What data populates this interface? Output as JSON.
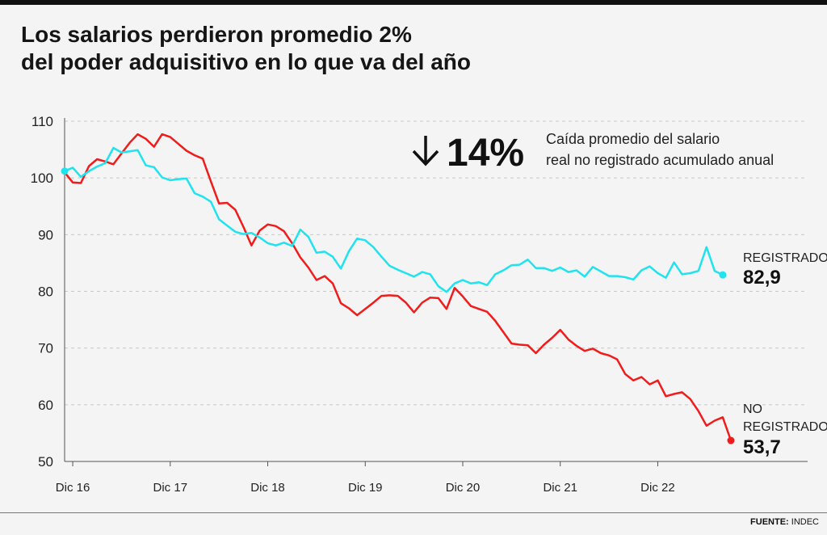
{
  "header": {
    "title_line1": "Los salarios perdieron promedio 2%",
    "title_line2": "del poder adquisitivo en lo que va del año"
  },
  "footer": {
    "source_label": "FUENTE:",
    "source_value": "INDEC"
  },
  "annotation": {
    "percent": "14%",
    "text_line1": "Caída promedio del salario",
    "text_line2": "real no registrado acumulado anual"
  },
  "colors": {
    "registrado": "#1fe3ef",
    "no_registrado": "#f01c1c",
    "grid": "#c8c8c8"
  },
  "chart_data": {
    "type": "line",
    "title": "Los salarios perdieron promedio 2% del poder adquisitivo en lo que va del año",
    "xlabel": "",
    "ylabel": "",
    "ylim": [
      50,
      110
    ],
    "xlim": [
      0,
      82
    ],
    "yticks": [
      50,
      60,
      70,
      80,
      90,
      100,
      110
    ],
    "xticks": [
      {
        "x": 1,
        "label": "Dic 16"
      },
      {
        "x": 13,
        "label": "Dic 17"
      },
      {
        "x": 25,
        "label": "Dic 18"
      },
      {
        "x": 37,
        "label": "Dic 19"
      },
      {
        "x": 49,
        "label": "Dic 20"
      },
      {
        "x": 61,
        "label": "Dic 21"
      },
      {
        "x": 73,
        "label": "Dic 22"
      }
    ],
    "grid": true,
    "series": [
      {
        "name": "REGISTRADO",
        "end_value_label": "82,9",
        "values": [
          101.2,
          101.8,
          100.2,
          101.2,
          102.0,
          102.6,
          105.3,
          104.5,
          104.7,
          104.9,
          102.2,
          101.9,
          100.1,
          99.6,
          99.8,
          99.9,
          97.3,
          96.7,
          95.8,
          92.7,
          91.6,
          90.5,
          90.1,
          90.3,
          89.5,
          88.5,
          88.1,
          88.6,
          88.0,
          90.9,
          89.6,
          86.8,
          87.0,
          86.1,
          84.0,
          87.1,
          89.3,
          89.0,
          87.8,
          86.1,
          84.5,
          83.8,
          83.2,
          82.6,
          83.4,
          83.0,
          80.9,
          79.9,
          81.4,
          82.0,
          81.4,
          81.6,
          81.1,
          83.0,
          83.7,
          84.6,
          84.7,
          85.6,
          84.1,
          84.1,
          83.6,
          84.2,
          83.4,
          83.7,
          82.6,
          84.3,
          83.5,
          82.7,
          82.7,
          82.5,
          82.1,
          83.7,
          84.4,
          83.2,
          82.4,
          85.1,
          83.0,
          83.2,
          83.6,
          87.8,
          83.6,
          82.9
        ]
      },
      {
        "name": "NO REGISTRADO",
        "end_value_label": "53,7",
        "values": [
          101.0,
          99.2,
          99.1,
          102.1,
          103.3,
          102.9,
          102.4,
          104.3,
          106.2,
          107.7,
          106.9,
          105.5,
          107.7,
          107.2,
          106.0,
          104.8,
          104.0,
          103.4,
          99.4,
          95.5,
          95.6,
          94.4,
          91.4,
          88.1,
          90.7,
          91.8,
          91.5,
          90.6,
          88.5,
          86.0,
          84.2,
          82.0,
          82.7,
          81.4,
          77.9,
          77.0,
          75.8,
          76.9,
          78.0,
          79.2,
          79.3,
          79.2,
          78.0,
          76.3,
          78.0,
          78.9,
          78.8,
          76.9,
          80.6,
          79.1,
          77.4,
          76.9,
          76.4,
          74.8,
          72.8,
          70.8,
          70.6,
          70.5,
          69.1,
          70.6,
          71.8,
          73.2,
          71.5,
          70.4,
          69.5,
          69.9,
          69.1,
          68.7,
          68.0,
          65.4,
          64.3,
          64.9,
          63.6,
          64.3,
          61.5,
          61.9,
          62.2,
          61.0,
          58.9,
          56.3,
          57.2,
          57.8,
          53.7
        ]
      }
    ]
  }
}
